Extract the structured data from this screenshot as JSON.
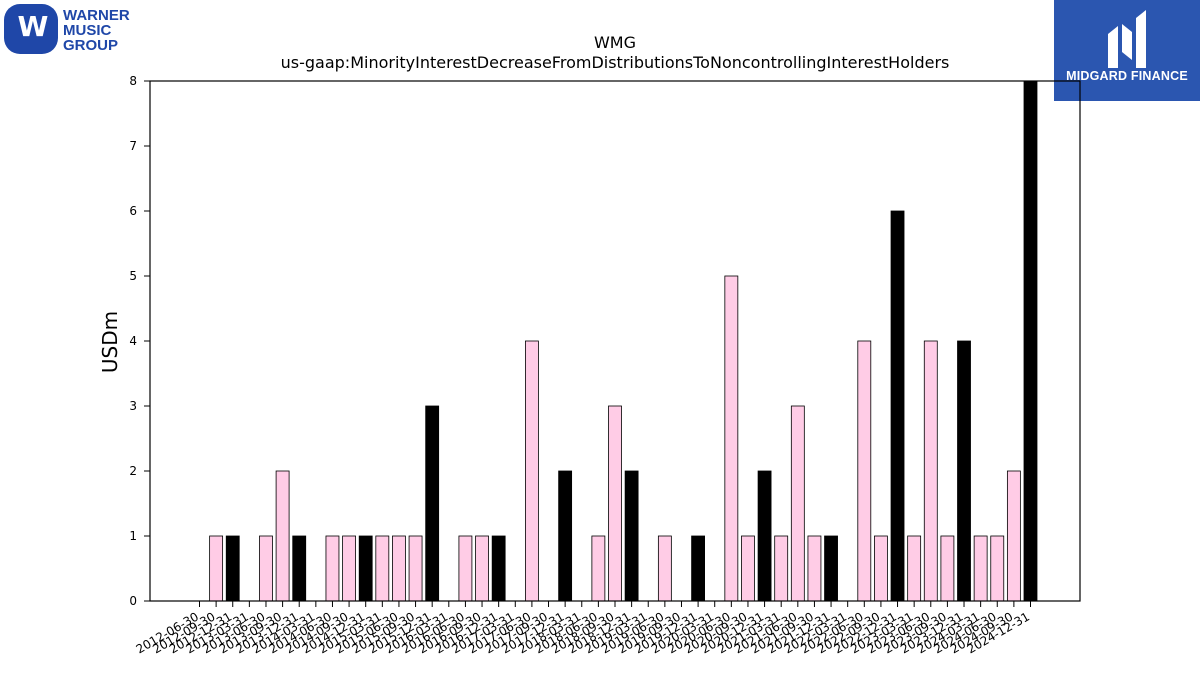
{
  "brand": {
    "wmg_logo_lines": [
      "WARNER",
      "MUSIC",
      "GROUP"
    ],
    "midgard_label": "MIDGARD FINANCE",
    "colors": {
      "wmg_blue": "#1f47a8",
      "midgard_blue": "#2b56b0"
    }
  },
  "chart_data": {
    "type": "bar",
    "title": "WMG",
    "subtitle": "us-gaap:MinorityInterestDecreaseFromDistributionsToNoncontrollingInterestHolders",
    "xlabel": "",
    "ylabel": "USDm",
    "ylim": [
      0,
      8
    ],
    "yticks": [
      "0",
      "1",
      "2",
      "3",
      "4",
      "5",
      "6",
      "7",
      "8"
    ],
    "grid": false,
    "colors": {
      "quarter_bar": "#ffcce6",
      "fiscal_year_end_bar": "#000000",
      "edge": "#000000"
    },
    "categories": [
      "2012-06-30",
      "2012-09-30",
      "2012-12-31",
      "2013-03-31",
      "2013-06-30",
      "2013-09-30",
      "2013-12-31",
      "2014-03-31",
      "2014-06-30",
      "2014-09-30",
      "2014-12-31",
      "2015-03-31",
      "2015-06-30",
      "2015-09-30",
      "2015-12-31",
      "2016-03-31",
      "2016-06-30",
      "2016-09-30",
      "2016-12-31",
      "2017-03-31",
      "2017-06-30",
      "2017-09-30",
      "2017-12-31",
      "2018-03-31",
      "2018-06-30",
      "2018-09-30",
      "2018-12-31",
      "2019-03-31",
      "2019-06-30",
      "2019-09-30",
      "2019-12-31",
      "2020-03-31",
      "2020-06-30",
      "2020-09-30",
      "2020-12-31",
      "2021-03-31",
      "2021-06-30",
      "2021-09-30",
      "2021-12-31",
      "2022-03-31",
      "2022-06-30",
      "2022-09-30",
      "2022-12-31",
      "2023-03-31",
      "2023-06-30",
      "2023-09-30",
      "2023-12-31",
      "2024-03-31",
      "2024-06-30",
      "2024-09-30",
      "2024-12-31"
    ],
    "values": [
      0,
      1,
      1,
      0,
      1,
      2,
      1,
      0,
      1,
      1,
      1,
      1,
      1,
      1,
      3,
      0,
      1,
      1,
      1,
      0,
      4,
      0,
      2,
      0,
      1,
      3,
      2,
      0,
      1,
      0,
      1,
      0,
      5,
      1,
      2,
      1,
      3,
      1,
      1,
      0,
      4,
      1,
      6,
      1,
      4,
      1,
      4,
      1,
      1,
      2,
      8
    ],
    "highlight": [
      false,
      false,
      true,
      false,
      false,
      false,
      true,
      false,
      false,
      false,
      true,
      false,
      false,
      false,
      true,
      false,
      false,
      false,
      true,
      false,
      false,
      false,
      true,
      false,
      false,
      false,
      true,
      false,
      false,
      false,
      true,
      false,
      false,
      false,
      true,
      false,
      false,
      false,
      true,
      false,
      false,
      false,
      true,
      false,
      false,
      false,
      true,
      false,
      false,
      false,
      true
    ]
  }
}
